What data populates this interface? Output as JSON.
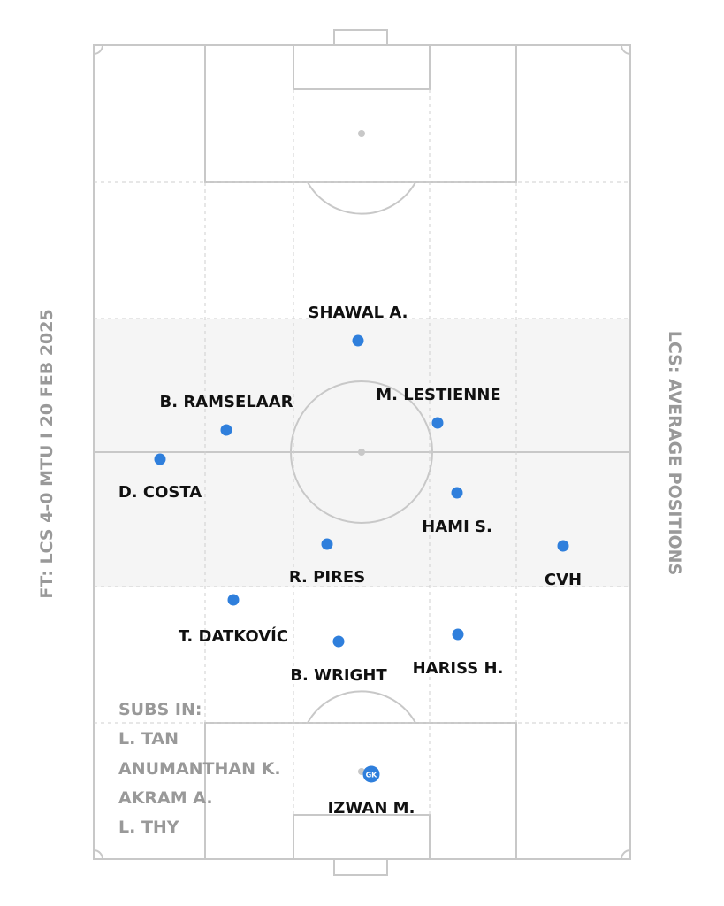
{
  "title_left": "FT: LCS 4-0 MTU I 20 FEB 2025",
  "title_right": "LCS: AVERAGE POSITIONS",
  "subs": {
    "heading": "SUBS IN:",
    "names": [
      "L. TAN",
      "ANUMANTHAN K.",
      "AKRAM A.",
      "L. THY"
    ]
  },
  "players": [
    {
      "name": "SHAWAL A."
    },
    {
      "name": "M. LESTIENNE"
    },
    {
      "name": "B. RAMSELAAR"
    },
    {
      "name": "D. COSTA"
    },
    {
      "name": "HAMI S."
    },
    {
      "name": "R. PIRES"
    },
    {
      "name": "CVH"
    },
    {
      "name": "T. DATKOVÍC"
    },
    {
      "name": "B. WRIGHT"
    },
    {
      "name": "HARISS H."
    },
    {
      "name": "IZWAN M.",
      "badge": "GK"
    }
  ],
  "colors": {
    "dot": "#2f7fdc",
    "label": "#111111",
    "pitch_lines": "#c8c8c8",
    "zone_fill": "#f5f5f5",
    "side_text": "#999999"
  }
}
